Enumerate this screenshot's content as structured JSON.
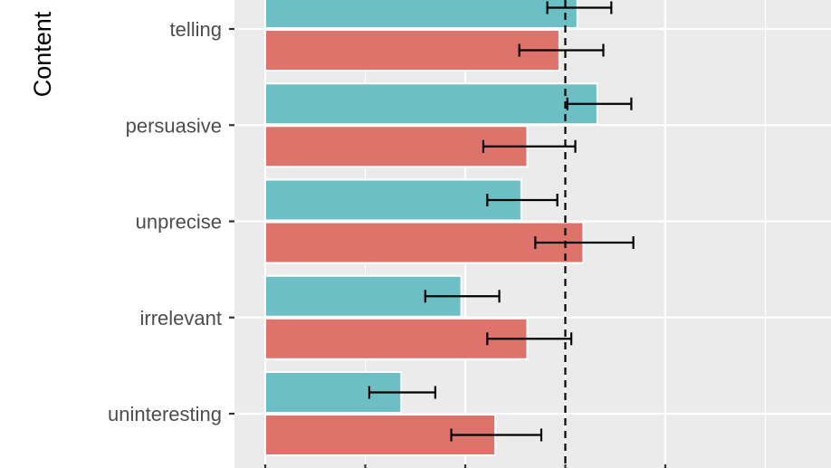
{
  "chart_data": {
    "type": "bar",
    "orientation": "horizontal",
    "ylabel": "Content",
    "xlabel": "",
    "categories": [
      "telling",
      "persuasive",
      "unprecise",
      "irrelevant",
      "uninteresting"
    ],
    "x_range": [
      -0.15,
      2.8
    ],
    "reference_line": {
      "value": 1.5,
      "style": "dashed"
    },
    "grid": true,
    "series": [
      {
        "color": "#6BBFC5",
        "position": "upper",
        "values": [
          1.56,
          1.66,
          1.28,
          0.98,
          0.68
        ],
        "error_low": [
          1.41,
          1.51,
          1.11,
          0.8,
          0.52
        ],
        "error_high": [
          1.73,
          1.83,
          1.46,
          1.17,
          0.85
        ]
      },
      {
        "color": "#DE736C",
        "position": "lower",
        "values": [
          1.47,
          1.31,
          1.59,
          1.31,
          1.15
        ],
        "error_low": [
          1.27,
          1.09,
          1.35,
          1.11,
          0.93
        ],
        "error_high": [
          1.69,
          1.55,
          1.84,
          1.53,
          1.38
        ]
      }
    ]
  }
}
